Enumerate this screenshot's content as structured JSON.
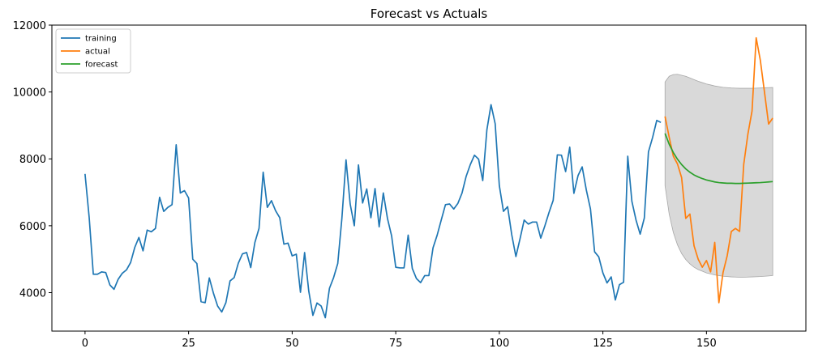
{
  "chart_data": {
    "type": "line",
    "title": "Forecast vs Actuals",
    "xlabel": "",
    "ylabel": "",
    "xlim": [
      -8,
      174
    ],
    "ylim": [
      2850,
      12000
    ],
    "x_ticks": [
      0,
      25,
      50,
      75,
      100,
      125,
      150
    ],
    "y_ticks": [
      4000,
      6000,
      8000,
      10000,
      12000
    ],
    "grid": false,
    "legend_position": "top-left",
    "series": [
      {
        "name": "training",
        "color": "#1f77b4",
        "x_start": 0,
        "values": [
          7550,
          6250,
          4550,
          4550,
          4620,
          4600,
          4230,
          4100,
          4400,
          4580,
          4680,
          4900,
          5350,
          5650,
          5250,
          5870,
          5820,
          5920,
          6850,
          6430,
          6550,
          6630,
          8420,
          6980,
          7050,
          6830,
          5000,
          4870,
          3730,
          3700,
          4440,
          3980,
          3600,
          3420,
          3700,
          4350,
          4450,
          4880,
          5160,
          5200,
          4750,
          5500,
          5920,
          7600,
          6550,
          6750,
          6450,
          6240,
          5450,
          5480,
          5100,
          5150,
          4010,
          5200,
          4050,
          3320,
          3690,
          3600,
          3250,
          4130,
          4450,
          4870,
          6220,
          7970,
          6650,
          6000,
          7820,
          6680,
          7100,
          6240,
          7110,
          5970,
          6980,
          6220,
          5700,
          4760,
          4740,
          4740,
          5720,
          4720,
          4420,
          4300,
          4510,
          4510,
          5340,
          5720,
          6180,
          6630,
          6650,
          6500,
          6670,
          6980,
          7480,
          7830,
          8110,
          7990,
          7350,
          8870,
          9620,
          9050,
          7200,
          6430,
          6570,
          5730,
          5080,
          5610,
          6170,
          6050,
          6110,
          6110,
          5630,
          6000,
          6400,
          6760,
          8120,
          8110,
          7620,
          8350,
          6970,
          7500,
          7760,
          7070,
          6500,
          5220,
          5070,
          4590,
          4290,
          4470,
          3780,
          4240,
          4310,
          8080,
          6730,
          6170,
          5750,
          6230,
          8210,
          8640,
          9150,
          9090
        ]
      },
      {
        "name": "actual",
        "color": "#ff7f0e",
        "x_start": 140,
        "values": [
          9270,
          8650,
          8080,
          7850,
          7440,
          6220,
          6350,
          5400,
          5000,
          4760,
          4960,
          4620,
          5500,
          3700,
          4600,
          5100,
          5830,
          5920,
          5830,
          7840,
          8740,
          9430,
          11620,
          10950,
          10000,
          9040,
          9220
        ]
      },
      {
        "name": "forecast",
        "color": "#2ca02c",
        "x_start": 140,
        "values": [
          8760,
          8440,
          8190,
          7990,
          7830,
          7700,
          7600,
          7520,
          7460,
          7410,
          7370,
          7340,
          7310,
          7290,
          7280,
          7270,
          7270,
          7265,
          7265,
          7270,
          7275,
          7280,
          7285,
          7290,
          7300,
          7310,
          7320
        ]
      }
    ],
    "confidence_band": {
      "color": "#bfbfbf",
      "x_start": 140,
      "upper": [
        10300,
        10470,
        10520,
        10530,
        10500,
        10470,
        10420,
        10370,
        10320,
        10280,
        10240,
        10210,
        10180,
        10160,
        10140,
        10130,
        10120,
        10115,
        10110,
        10110,
        10110,
        10110,
        10115,
        10120,
        10125,
        10130,
        10135
      ],
      "lower": [
        7200,
        6350,
        5800,
        5430,
        5170,
        4990,
        4860,
        4760,
        4690,
        4640,
        4590,
        4560,
        4530,
        4510,
        4490,
        4480,
        4470,
        4465,
        4460,
        4460,
        4465,
        4470,
        4475,
        4480,
        4490,
        4500,
        4510
      ]
    }
  }
}
